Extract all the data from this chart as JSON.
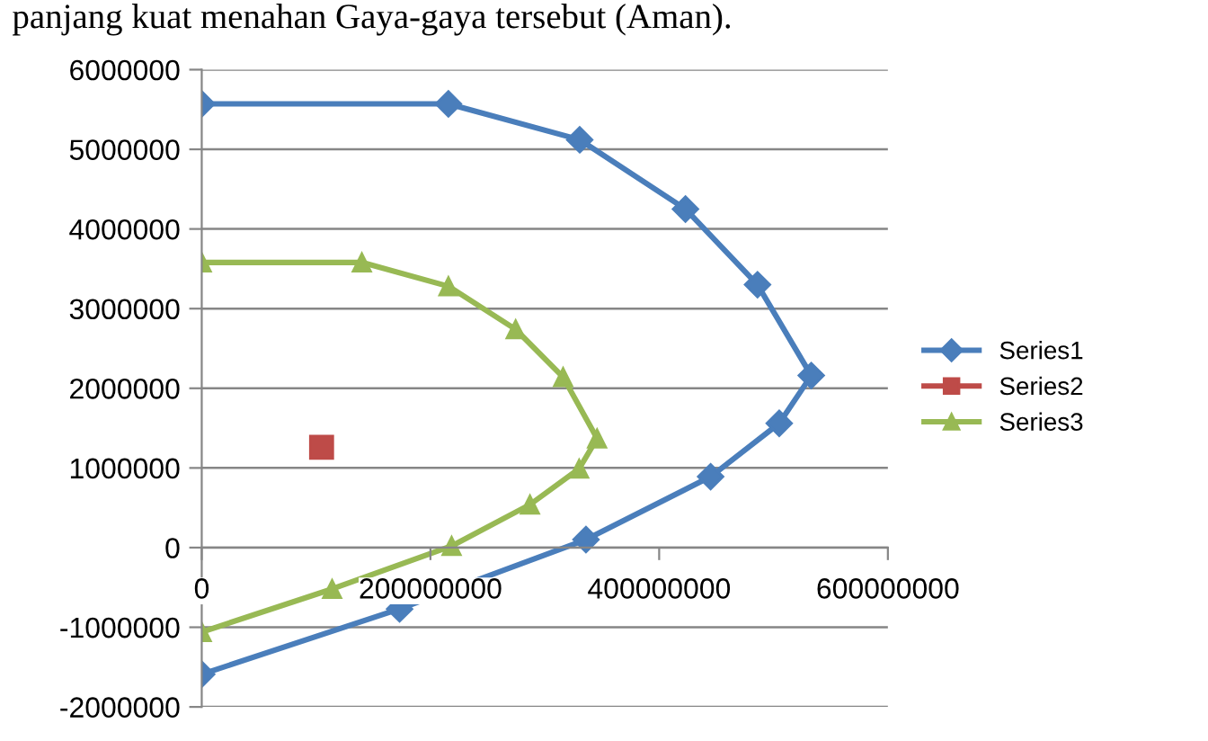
{
  "chart_data": {
    "type": "line",
    "annotations": [
      "panjang kuat menahan Gaya-gaya tersebut (Aman)."
    ],
    "series": [
      {
        "name": "Series1",
        "color": "#4a7ebb",
        "marker": "diamond",
        "x": [
          0,
          215700000,
          330500000,
          423000000,
          486000000,
          533000000,
          505000000,
          445000000,
          336000000,
          173000000,
          0
        ],
        "values": [
          5570000,
          5570000,
          5120000,
          4250000,
          3300000,
          2160000,
          1560000,
          890000,
          100000,
          -770000,
          -1590000
        ]
      },
      {
        "name": "Series2",
        "color": "#be4b48",
        "marker": "square",
        "type": "scatter",
        "x": [
          104800000
        ],
        "values": [
          1260000
        ]
      },
      {
        "name": "Series3",
        "color": "#98b954",
        "marker": "triangle",
        "x": [
          0,
          140000000,
          215700000,
          274500000,
          316000000,
          345700000,
          330000000,
          287000000,
          218500000,
          114000000,
          0
        ],
        "values": [
          3580000,
          3580000,
          3280000,
          2740000,
          2140000,
          1370000,
          990000,
          540000,
          20000,
          -520000,
          -1060000
        ]
      }
    ],
    "xlim": [
      0,
      600000000
    ],
    "xticks": [
      0,
      200000000,
      400000000,
      600000000
    ],
    "ylim": [
      -2000000,
      6000000
    ],
    "yticks": [
      -2000000,
      -1000000,
      0,
      1000000,
      2000000,
      3000000,
      4000000,
      5000000,
      6000000
    ],
    "grid": "y",
    "legend": "right",
    "line_style": "solid"
  }
}
